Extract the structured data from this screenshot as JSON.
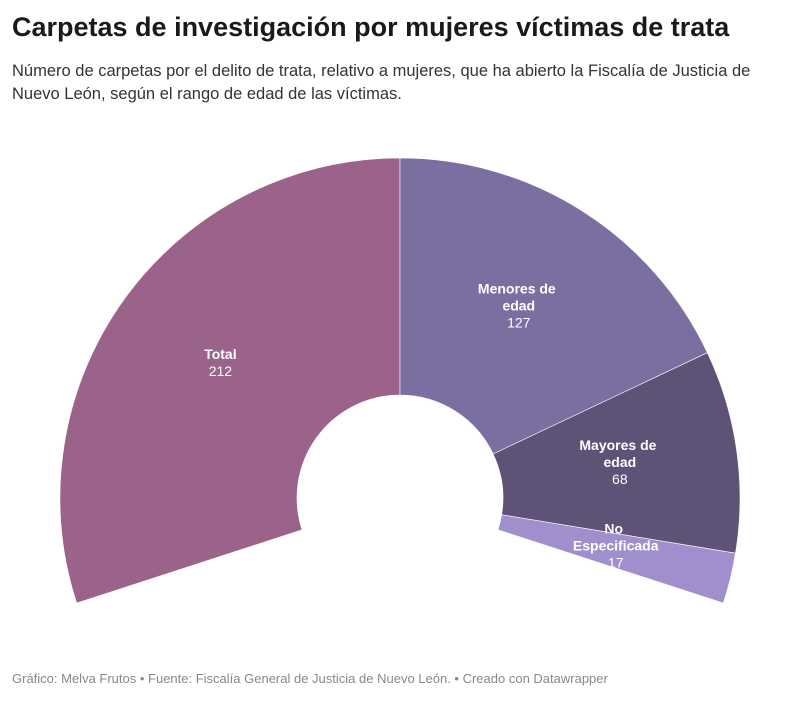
{
  "chart_data": {
    "type": "pie",
    "title": "Carpetas de investigación por mujeres víctimas de trata",
    "subtitle": "Número de carpetas por el delito de trata, relativo a mujeres, que ha abierto la Fiscalía de Justicia de Nuevo León, según el rango de edad de las víctimas.",
    "categories": [
      "Total",
      "Menores de edad",
      "Mayores de edad",
      "No Especificada"
    ],
    "values": [
      212,
      127,
      68,
      17
    ],
    "colors": [
      "#9b6389",
      "#7b6fa2",
      "#5e5277",
      "#a08fcc"
    ],
    "source": "Gráfico: Melva Frutos • Fuente: Fiscalía General de Justicia de Nuevo León. • Creado con Datawrapper"
  }
}
